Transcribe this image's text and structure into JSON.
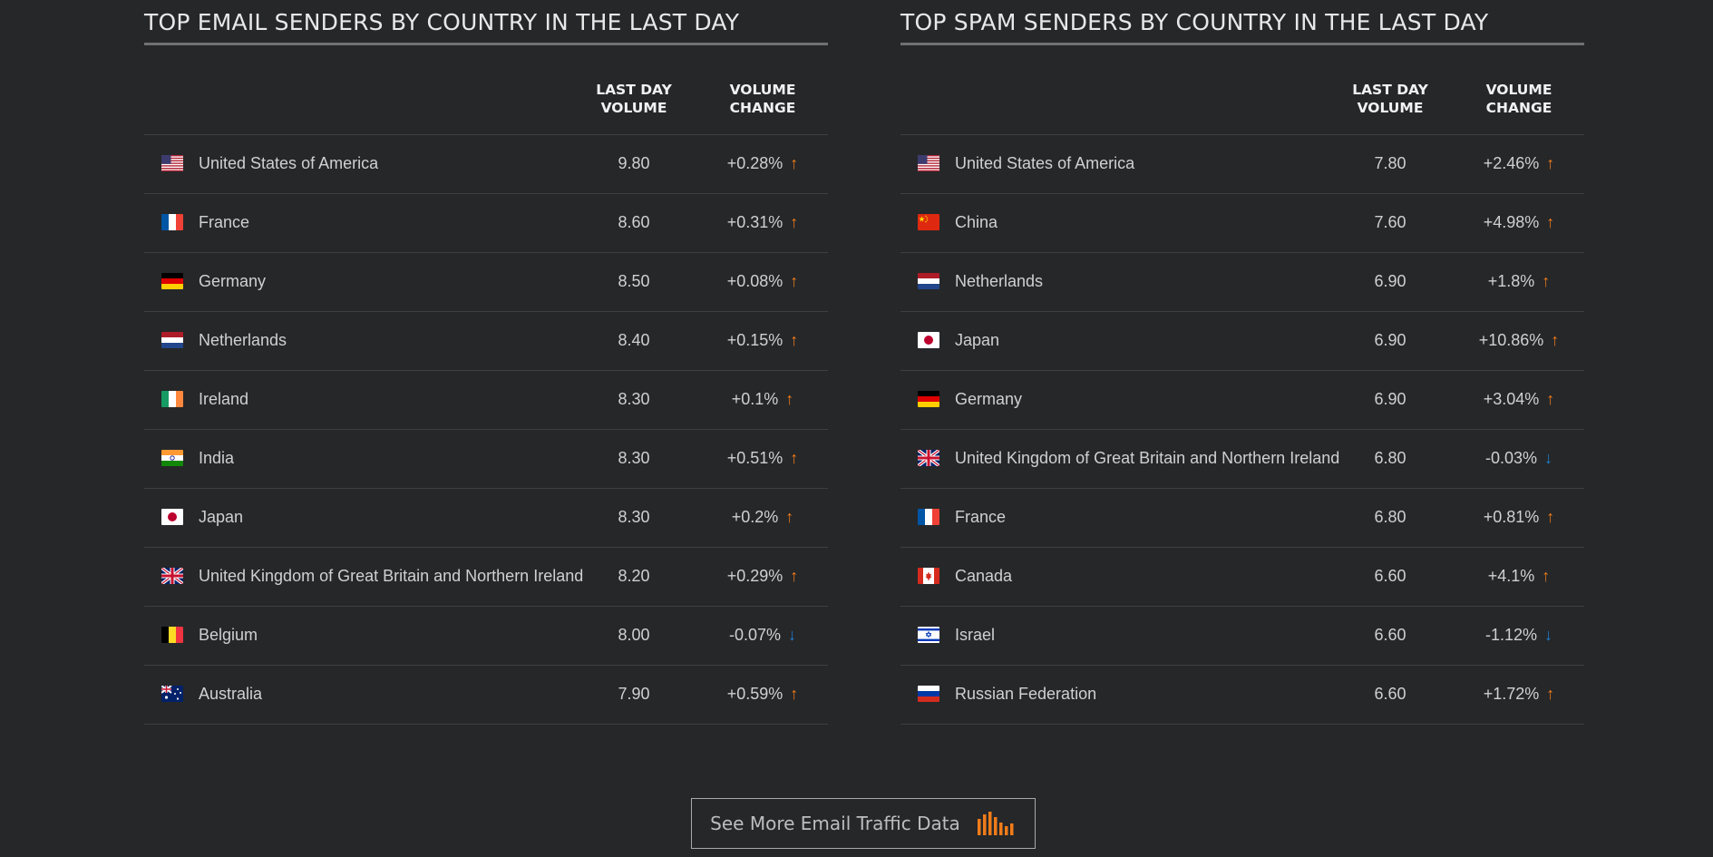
{
  "email": {
    "title": "TOP EMAIL SENDERS BY COUNTRY IN THE LAST DAY",
    "col_volume": "LAST DAY\nVOLUME",
    "col_change": "VOLUME\nCHANGE",
    "rows": [
      {
        "flag": "us-flag-icon",
        "country": "United States of America",
        "volume": "9.80",
        "change": "+0.28%",
        "dir": "up"
      },
      {
        "flag": "fr-flag-icon",
        "country": "France",
        "volume": "8.60",
        "change": "+0.31%",
        "dir": "up"
      },
      {
        "flag": "de-flag-icon",
        "country": "Germany",
        "volume": "8.50",
        "change": "+0.08%",
        "dir": "up"
      },
      {
        "flag": "nl-flag-icon",
        "country": "Netherlands",
        "volume": "8.40",
        "change": "+0.15%",
        "dir": "up"
      },
      {
        "flag": "ie-flag-icon",
        "country": "Ireland",
        "volume": "8.30",
        "change": "+0.1%",
        "dir": "up"
      },
      {
        "flag": "in-flag-icon",
        "country": "India",
        "volume": "8.30",
        "change": "+0.51%",
        "dir": "up"
      },
      {
        "flag": "jp-flag-icon",
        "country": "Japan",
        "volume": "8.30",
        "change": "+0.2%",
        "dir": "up"
      },
      {
        "flag": "gb-flag-icon",
        "country": "United Kingdom of Great Britain and Northern Ireland",
        "volume": "8.20",
        "change": "+0.29%",
        "dir": "up"
      },
      {
        "flag": "be-flag-icon",
        "country": "Belgium",
        "volume": "8.00",
        "change": "-0.07%",
        "dir": "down"
      },
      {
        "flag": "au-flag-icon",
        "country": "Australia",
        "volume": "7.90",
        "change": "+0.59%",
        "dir": "up"
      }
    ]
  },
  "spam": {
    "title": "TOP SPAM SENDERS BY COUNTRY IN THE LAST DAY",
    "col_volume": "LAST DAY\nVOLUME",
    "col_change": "VOLUME\nCHANGE",
    "rows": [
      {
        "flag": "us-flag-icon",
        "country": "United States of America",
        "volume": "7.80",
        "change": "+2.46%",
        "dir": "up"
      },
      {
        "flag": "cn-flag-icon",
        "country": "China",
        "volume": "7.60",
        "change": "+4.98%",
        "dir": "up"
      },
      {
        "flag": "nl-flag-icon",
        "country": "Netherlands",
        "volume": "6.90",
        "change": "+1.8%",
        "dir": "up"
      },
      {
        "flag": "jp-flag-icon",
        "country": "Japan",
        "volume": "6.90",
        "change": "+10.86%",
        "dir": "up"
      },
      {
        "flag": "de-flag-icon",
        "country": "Germany",
        "volume": "6.90",
        "change": "+3.04%",
        "dir": "up"
      },
      {
        "flag": "gb-flag-icon",
        "country": "United Kingdom of Great Britain and Northern Ireland",
        "volume": "6.80",
        "change": "-0.03%",
        "dir": "down"
      },
      {
        "flag": "fr-flag-icon",
        "country": "France",
        "volume": "6.80",
        "change": "+0.81%",
        "dir": "up"
      },
      {
        "flag": "ca-flag-icon",
        "country": "Canada",
        "volume": "6.60",
        "change": "+4.1%",
        "dir": "up"
      },
      {
        "flag": "il-flag-icon",
        "country": "Israel",
        "volume": "6.60",
        "change": "-1.12%",
        "dir": "down"
      },
      {
        "flag": "ru-flag-icon",
        "country": "Russian Federation",
        "volume": "6.60",
        "change": "+1.72%",
        "dir": "up"
      }
    ]
  },
  "colors": {
    "up": "#f07c1a",
    "down": "#1f7fd1",
    "background": "#262729"
  },
  "more_button": {
    "label": "See More Email Traffic Data",
    "icon": "bar-chart-icon"
  }
}
